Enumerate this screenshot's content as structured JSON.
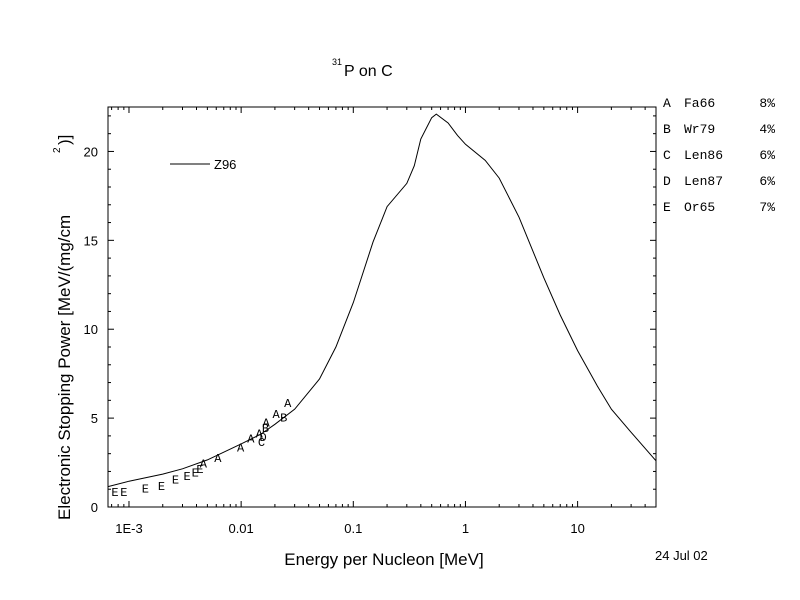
{
  "chart_data": {
    "type": "line",
    "title_sup": "31",
    "title_main": "P on C",
    "xlabel": "Energy per Nucleon [MeV]",
    "ylabel_main": "Electronic Stopping Power [MeV/(mg/cm",
    "ylabel_sup": "2",
    "ylabel_close": ")]",
    "xscale": "log",
    "xlim": [
      0.00065,
      50
    ],
    "ylim": [
      0,
      22.5
    ],
    "x_ticks": [
      {
        "value": 0.001,
        "label": "1E-3"
      },
      {
        "value": 0.01,
        "label": "0.01"
      },
      {
        "value": 0.1,
        "label": "0.1"
      },
      {
        "value": 1,
        "label": "1"
      },
      {
        "value": 10,
        "label": "10"
      }
    ],
    "y_ticks": [
      {
        "value": 0,
        "label": "0"
      },
      {
        "value": 5,
        "label": "5"
      },
      {
        "value": 10,
        "label": "10"
      },
      {
        "value": 15,
        "label": "15"
      },
      {
        "value": 20,
        "label": "20"
      }
    ],
    "legend_position": "top-left",
    "series": [
      {
        "name": "Z96",
        "x": [
          0.00065,
          0.001,
          0.002,
          0.003,
          0.005,
          0.01,
          0.015,
          0.02,
          0.03,
          0.05,
          0.07,
          0.1,
          0.15,
          0.2,
          0.3,
          0.35,
          0.4,
          0.5,
          0.55,
          0.7,
          0.85,
          1.0,
          1.5,
          2.0,
          3.0,
          5.0,
          7.0,
          10,
          15,
          20,
          30,
          50
        ],
        "y": [
          1.15,
          1.45,
          1.85,
          2.15,
          2.65,
          3.55,
          4.1,
          4.65,
          5.5,
          7.2,
          9.0,
          11.5,
          14.9,
          16.9,
          18.2,
          19.2,
          20.7,
          21.9,
          22.1,
          21.6,
          20.9,
          20.4,
          19.5,
          18.5,
          16.3,
          12.9,
          10.8,
          8.8,
          6.8,
          5.5,
          4.2,
          2.6
        ]
      }
    ],
    "measurements": [
      {
        "letter": "A",
        "x": 0.0046,
        "y": 2.5
      },
      {
        "letter": "A",
        "x": 0.0062,
        "y": 2.8
      },
      {
        "letter": "A",
        "x": 0.0099,
        "y": 3.4
      },
      {
        "letter": "A",
        "x": 0.0122,
        "y": 3.9
      },
      {
        "letter": "A",
        "x": 0.0145,
        "y": 4.2
      },
      {
        "letter": "A",
        "x": 0.0167,
        "y": 4.8
      },
      {
        "letter": "A",
        "x": 0.0205,
        "y": 5.3
      },
      {
        "letter": "A",
        "x": 0.026,
        "y": 5.9
      },
      {
        "letter": "B",
        "x": 0.0165,
        "y": 4.5
      },
      {
        "letter": "B",
        "x": 0.024,
        "y": 5.1
      },
      {
        "letter": "C",
        "x": 0.0152,
        "y": 3.7
      },
      {
        "letter": "D",
        "x": 0.0157,
        "y": 4.0
      },
      {
        "letter": "E",
        "x": 0.00075,
        "y": 0.9
      },
      {
        "letter": "E",
        "x": 0.0009,
        "y": 0.9
      },
      {
        "letter": "E",
        "x": 0.0014,
        "y": 1.1
      },
      {
        "letter": "E",
        "x": 0.00195,
        "y": 1.25
      },
      {
        "letter": "E",
        "x": 0.0026,
        "y": 1.6
      },
      {
        "letter": "E",
        "x": 0.0033,
        "y": 1.8
      },
      {
        "letter": "E",
        "x": 0.0039,
        "y": 2.0
      },
      {
        "letter": "E",
        "x": 0.0043,
        "y": 2.2
      }
    ],
    "references": [
      {
        "letter": "A",
        "ref": "Fa66",
        "error": "8%"
      },
      {
        "letter": "B",
        "ref": "Wr79",
        "error": "4%"
      },
      {
        "letter": "C",
        "ref": "Len86",
        "error": "6%"
      },
      {
        "letter": "D",
        "ref": "Len87",
        "error": "6%"
      },
      {
        "letter": "E",
        "ref": "Or65",
        "error": "7%"
      }
    ],
    "date_label": "24 Jul 02"
  }
}
